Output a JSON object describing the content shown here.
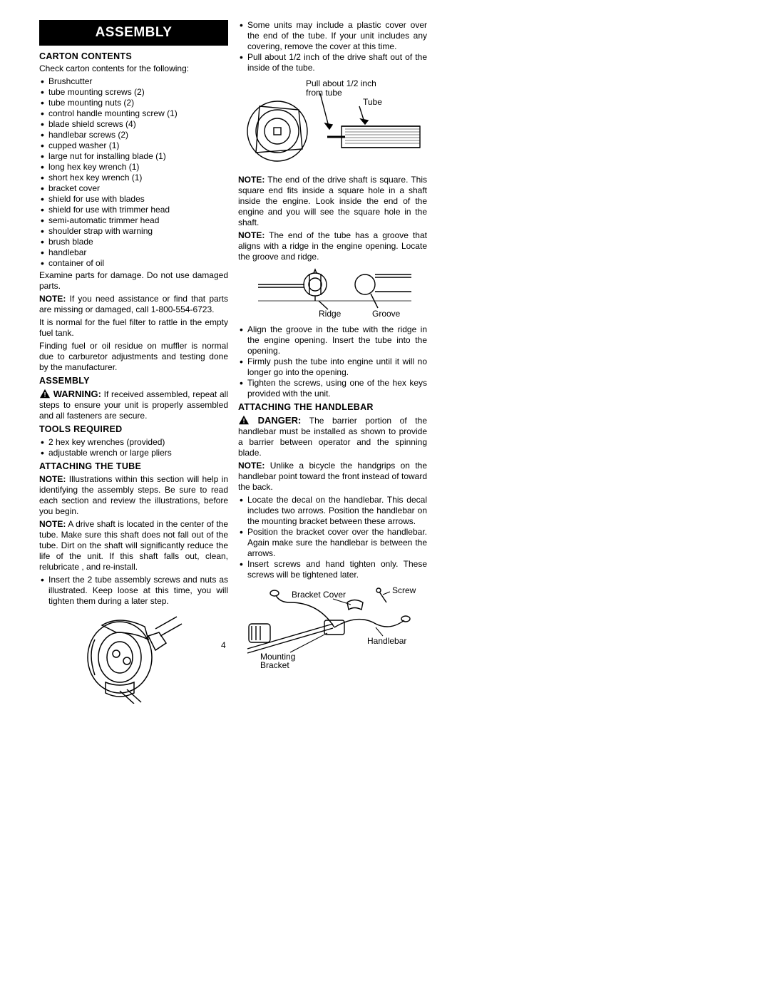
{
  "page_number": "4",
  "colors": {
    "header_bg": "#000000",
    "header_fg": "#ffffff",
    "text": "#000000",
    "page_bg": "#ffffff"
  },
  "typography": {
    "body_fontsize_pt": 9,
    "header_fontsize_pt": 15,
    "subhead_fontsize_pt": 9.5,
    "font_family": "Arial"
  },
  "left": {
    "section_header": "ASSEMBLY",
    "carton_heading": "CARTON CONTENTS",
    "carton_intro": "Check carton contents for the following:",
    "carton_items": [
      "Brushcutter",
      "tube mounting screws (2)",
      "tube mounting nuts (2)",
      "control handle mounting screw (1)",
      "blade shield screws (4)",
      "handlebar screws (2)",
      "cupped washer (1)",
      "large nut for installing blade (1)",
      "long hex key wrench (1)",
      "short hex key wrench (1)",
      "bracket cover",
      "shield for use with blades",
      "shield for use with trimmer head",
      "semi-automatic trimmer head",
      "shoulder strap with warning",
      "brush blade",
      "handlebar",
      "container of oil"
    ],
    "carton_examine": "Examine parts for damage. Do not use damaged parts.",
    "carton_note": "If you need assistance or find that parts are missing or damaged, call 1-800-554-6723.",
    "fuel_filter": "It is normal for the fuel filter to rattle in the empty fuel tank.",
    "residue": "Finding fuel or oil residue on muffler is normal due to carburetor adjustments and testing done by the manufacturer.",
    "assembly_heading": "ASSEMBLY",
    "warning_label": "WARNING:",
    "warning_text": "If received assembled, repeat all steps to ensure your unit is properly assembled and all fasteners are secure.",
    "tools_heading": "TOOLS REQUIRED",
    "tools_items": [
      "2 hex key wrenches (provided)",
      "adjustable wrench or large pliers"
    ],
    "tube_heading": "ATTACHING THE TUBE",
    "tube_note1": "Illustrations within this section will help in identifying the assembly steps. Be sure to read each section and review the illustrations, before you begin.",
    "tube_note2": "A drive shaft is located in the center of the tube. Make sure this shaft does not fall out of the tube. Dirt on the shaft will significantly reduce the life of the unit. If this shaft falls out, clean, relubricate , and re-install.",
    "tube_items": [
      "Insert the 2 tube assembly screws and nuts as illustrated. Keep loose at this time, you will tighten them during a later step."
    ]
  },
  "right": {
    "top_items": [
      "Some units may include a plastic cover over the end of the tube. If your unit includes any covering, remove the cover at this time.",
      "Pull about 1/2 inch of the drive shaft out of the inside of the tube."
    ],
    "fig1_label1": "Pull about 1/2 inch from tube",
    "fig1_label2": "Tube",
    "note1": "The end of the drive shaft is square. This square end fits inside a square hole in a shaft inside the engine. Look inside the end of the engine and you will see the square hole in the shaft.",
    "note2": "The end of the tube has a groove that aligns with a ridge in the engine opening. Locate the groove and ridge.",
    "fig2_label1": "Ridge",
    "fig2_label2": "Groove",
    "align_items": [
      "Align the groove in the tube with the ridge in the engine opening. Insert the tube into the opening.",
      "Firmly push the tube into engine until it will no longer go into the opening.",
      "Tighten the screws, using one of the hex keys provided with the unit."
    ],
    "handlebar_heading": "ATTACHING THE HANDLEBAR",
    "danger_label": "DANGER:",
    "danger_text": "The barrier portion of the handlebar must be installed as shown to provide a barrier between operator and the spinning blade.",
    "handlebar_note": "Unlike a bicycle the handgrips on the handlebar point toward the front instead of toward the back.",
    "handlebar_items": [
      "Locate the decal on the handlebar. This decal includes two arrows. Position the handlebar on the mounting bracket between these arrows.",
      "Position the bracket cover over the handlebar. Again make sure the handlebar is between the arrows.",
      "Insert screws and hand tighten only. These screws will be tightened later."
    ],
    "fig3_label1": "Bracket Cover",
    "fig3_label2": "Screw",
    "fig3_label3": "Handlebar",
    "fig3_label4": "Mounting Bracket"
  }
}
